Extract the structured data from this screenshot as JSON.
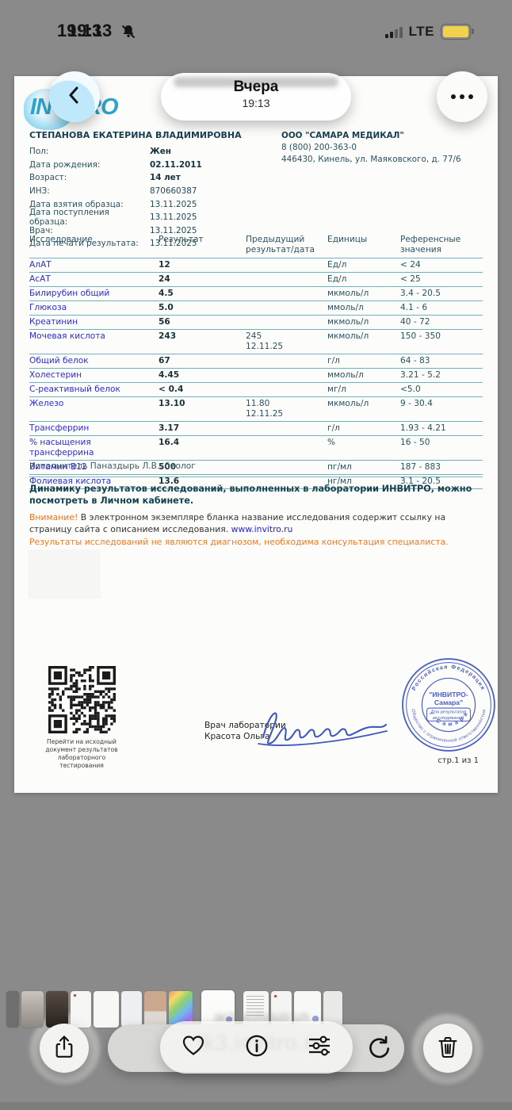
{
  "status_bar": {
    "time": "19:13",
    "network": "LTE"
  },
  "header": {
    "title": "Вчера",
    "subtitle": "19:13"
  },
  "doc": {
    "logo": "INVITRO",
    "patient_name": "СТЕПАНОВА ЕКАТЕРИНА ВЛАДИМИРОВНА",
    "patient_fields": [
      {
        "label": "Пол:",
        "value": "Жен"
      },
      {
        "label": "Дата рождения:",
        "value": "02.11.2011"
      },
      {
        "label": "Возраст:",
        "value": "14 лет"
      },
      {
        "label": "ИНЗ:",
        "value": "870660387"
      },
      {
        "label": "Дата взятия образца:",
        "value": "13.11.2025"
      },
      {
        "label": "Дата поступления образца:",
        "value": "13.11.2025"
      },
      {
        "label": "Врач:",
        "value": "13.11.2025"
      },
      {
        "label": "Дата печати результата:",
        "value": "13.11.2025"
      }
    ],
    "clinic": {
      "name": "ООО \"САМАРА МЕДИКАЛ\"",
      "phone": "8 (800) 200-363-0",
      "address": "446430, Кинель, ул. Маяковского, д. 77/6"
    },
    "table": {
      "headers": [
        "Исследование",
        "Результат",
        "Предыдущий результат/дата",
        "Единицы",
        "Референсные значения"
      ],
      "rows": [
        {
          "name": "АлАТ",
          "result": "12",
          "prev": "",
          "prev_date": "",
          "units": "Ед/л",
          "ref": "< 24"
        },
        {
          "name": "АсАТ",
          "result": "24",
          "prev": "",
          "prev_date": "",
          "units": "Ед/л",
          "ref": "< 25"
        },
        {
          "name": "Билирубин общий",
          "result": "4.5",
          "prev": "",
          "prev_date": "",
          "units": "мкмоль/л",
          "ref": "3.4 - 20.5"
        },
        {
          "name": "Глюкоза",
          "result": "5.0",
          "prev": "",
          "prev_date": "",
          "units": "ммоль/л",
          "ref": "4.1 - 6"
        },
        {
          "name": "Креатинин",
          "result": "56",
          "prev": "",
          "prev_date": "",
          "units": "мкмоль/л",
          "ref": "40 - 72"
        },
        {
          "name": "Мочевая кислота",
          "result": "243",
          "prev": "245",
          "prev_date": "12.11.25",
          "units": "мкмоль/л",
          "ref": "150 - 350"
        },
        {
          "name": "Общий белок",
          "result": "67",
          "prev": "",
          "prev_date": "",
          "units": "г/л",
          "ref": "64 - 83"
        },
        {
          "name": "Холестерин",
          "result": "4.45",
          "prev": "",
          "prev_date": "",
          "units": "ммоль/л",
          "ref": "3.21 - 5.2"
        },
        {
          "name": "С-реактивный белок",
          "result": "< 0.4",
          "prev": "",
          "prev_date": "",
          "units": "мг/л",
          "ref": "<5.0"
        },
        {
          "name": "Железо",
          "result": "13.10",
          "prev": "11.80",
          "prev_date": "12.11.25",
          "units": "мкмоль/л",
          "ref": "9 - 30.4"
        },
        {
          "name": "Трансферрин",
          "result": "3.17",
          "prev": "",
          "prev_date": "",
          "units": "г/л",
          "ref": "1.93 - 4.21"
        },
        {
          "name": "% насыщения трансферрина",
          "result": "16.4",
          "prev": "",
          "prev_date": "",
          "units": "%",
          "ref": "16 - 50"
        },
        {
          "name": "Витамин B12",
          "result": "500",
          "prev": "",
          "prev_date": "",
          "units": "пг/мл",
          "ref": "187 - 883"
        },
        {
          "name": "Фолиевая кислота",
          "result": "13.6",
          "prev": "",
          "prev_date": "",
          "units": "нг/мл",
          "ref": "3.1 - 20.5"
        }
      ]
    },
    "executor": "Исполнитель Паназдырь Л.В., биолог",
    "notice": "Динамику результатов исследований, выполненных в лаборатории ИНВИТРО, можно посмотреть в Личном кабинете.",
    "attention_label": "Внимание!",
    "attention_text": "В электронном экземпляре бланка название исследования содержит ссылку на страницу сайта с описанием исследования.",
    "attention_link": "www.invitro.ru",
    "disclaimer": "Результаты исследований не являются диагнозом, необходима консультация специалиста.",
    "qr_caption": "Перейти на исходный документ результатов лабораторного тестирования",
    "signature": {
      "line1": "Врач лаборатории",
      "line2": "Красота Ольга"
    },
    "stamp": {
      "arc_top": "Российская Федерация",
      "arc_bottom": "Общество с ограниченной ответственностью",
      "arc_inner": "г . С а м а р а",
      "center1": "\"ИНВИТРО-",
      "center2": "Самара\"",
      "box1": "Для результатов",
      "box2": "исследований"
    },
    "page_label": "стр.1 из 1"
  },
  "overlay_text": "lk3.invitro.ru",
  "colors": {
    "accent_teal": "#2fa3c9",
    "line_teal": "#6fb0bd",
    "test_link_blue": "#2d2dd2",
    "attention_orange": "#e8731e",
    "stamp_blue": "#4a5cc0",
    "battery_yellow": "#f2d14e"
  }
}
